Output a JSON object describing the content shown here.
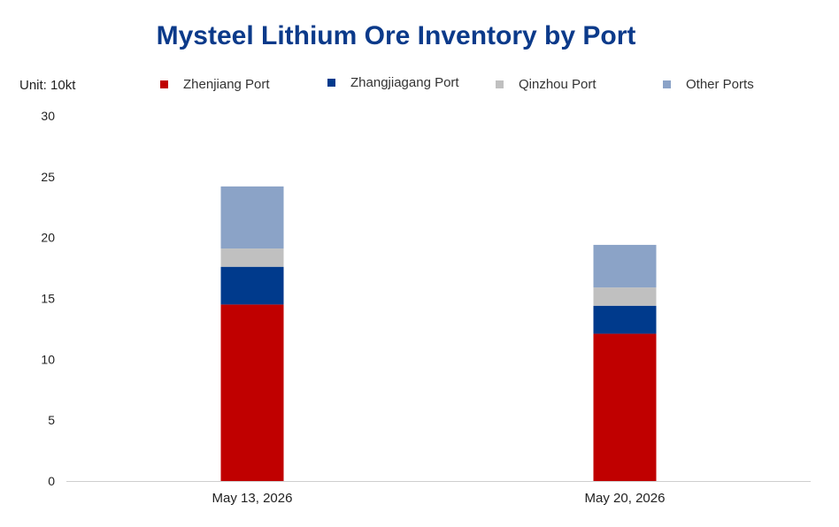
{
  "chart_data": {
    "type": "bar",
    "stacked": true,
    "title": "Mysteel Lithium Ore Inventory by Port",
    "unit_label": "Unit: 10kt",
    "categories": [
      "May 13, 2026",
      "May 20, 2026"
    ],
    "series": [
      {
        "name": "Zhenjiang Port",
        "color": "#c00000",
        "values": [
          14.5,
          12.1
        ]
      },
      {
        "name": "Zhangjiagang Port",
        "color": "#003a8c",
        "values": [
          3.1,
          2.3
        ]
      },
      {
        "name": "Qinzhou Port",
        "color": "#c0c0c0",
        "values": [
          1.5,
          1.5
        ]
      },
      {
        "name": "Other Ports",
        "color": "#8ba3c7",
        "values": [
          5.1,
          3.5
        ]
      }
    ],
    "ylim": [
      0,
      30
    ],
    "yticks": [
      "0",
      "5",
      "10",
      "15",
      "20",
      "25",
      "30"
    ],
    "grid": false,
    "legend_position": "top"
  }
}
